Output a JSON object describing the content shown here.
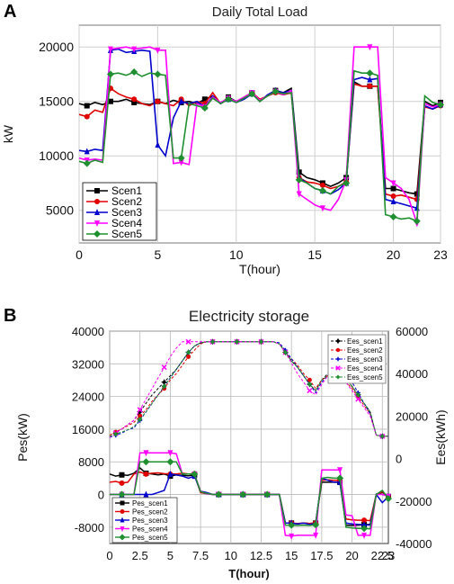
{
  "panel_labels": [
    "A",
    "B"
  ],
  "chart_data": [
    {
      "type": "line",
      "title": "Daily Total Load",
      "xlabel": "T(hour)",
      "ylabel": "kW",
      "xlim": [
        0,
        23
      ],
      "ylim": [
        2000,
        22000
      ],
      "xticks": [
        "0",
        "5",
        "10",
        "15",
        "20",
        "23"
      ],
      "yticks": [
        "5000",
        "10000",
        "15000",
        "20000"
      ],
      "grid": true,
      "legend_position": "bottom-left",
      "x": [
        0,
        0.5,
        1,
        1.5,
        2,
        2.5,
        3,
        3.5,
        4,
        4.5,
        5,
        5.5,
        6,
        6.5,
        7,
        7.5,
        8,
        8.5,
        9,
        9.5,
        10,
        10.5,
        11,
        11.5,
        12,
        12.5,
        13,
        13.5,
        14,
        14.5,
        15,
        15.5,
        16,
        16.5,
        17,
        17.5,
        18,
        18.5,
        19,
        19.5,
        20,
        20.5,
        21,
        21.5,
        22,
        22.5,
        23
      ],
      "series": [
        {
          "name": "Scen1",
          "color": "#000000",
          "marker": "square",
          "values": [
            14800,
            14600,
            14900,
            14700,
            15000,
            15000,
            15200,
            14900,
            14800,
            14700,
            15000,
            14800,
            15100,
            14900,
            15000,
            14800,
            15200,
            15500,
            14800,
            15400,
            15000,
            15300,
            15800,
            15000,
            15600,
            16000,
            15800,
            16200,
            8500,
            8000,
            7800,
            7500,
            7200,
            7500,
            8000,
            16800,
            16400,
            16400,
            16400,
            7000,
            7000,
            6800,
            6600,
            6500,
            15000,
            14600,
            14900
          ]
        },
        {
          "name": "Scen2",
          "color": "#e00000",
          "marker": "circle",
          "values": [
            13800,
            13600,
            14200,
            14000,
            16200,
            15700,
            15400,
            15200,
            14800,
            14600,
            15000,
            14800,
            14600,
            15200,
            14600,
            15000,
            14800,
            15800,
            14800,
            15200,
            15000,
            15400,
            15800,
            15200,
            15500,
            15800,
            15600,
            15800,
            8000,
            7600,
            7500,
            7300,
            7000,
            7200,
            7600,
            16600,
            16400,
            16400,
            16400,
            6500,
            6300,
            6400,
            6200,
            6000,
            14500,
            14300,
            14600
          ]
        },
        {
          "name": "Scen3",
          "color": "#0000cc",
          "marker": "triangle",
          "values": [
            10500,
            10400,
            10600,
            10500,
            19700,
            19800,
            19500,
            19600,
            19700,
            19600,
            11000,
            10000,
            13500,
            15000,
            14800,
            15000,
            14500,
            15500,
            14800,
            15200,
            14900,
            15200,
            15700,
            15000,
            15600,
            16000,
            15800,
            16000,
            8000,
            7500,
            7000,
            6800,
            6500,
            6900,
            7500,
            17000,
            17200,
            17000,
            17100,
            6000,
            5800,
            5600,
            5400,
            5200,
            14600,
            14300,
            14700
          ]
        },
        {
          "name": "Scen4",
          "color": "#ff00ff",
          "marker": "triangle-down",
          "values": [
            9800,
            9600,
            9700,
            9600,
            19800,
            19900,
            20000,
            19800,
            19900,
            20000,
            19700,
            19700,
            9300,
            9400,
            9200,
            14800,
            14500,
            15400,
            14900,
            15300,
            15000,
            15400,
            15800,
            15100,
            15500,
            15900,
            15600,
            16000,
            6500,
            6000,
            5500,
            5200,
            5000,
            6000,
            7800,
            20000,
            20000,
            20000,
            20000,
            8000,
            7500,
            7000,
            6000,
            3800,
            14800,
            14500,
            14700
          ]
        },
        {
          "name": "Scen5",
          "color": "#1f8f2f",
          "marker": "diamond",
          "values": [
            9500,
            9300,
            9600,
            9400,
            17500,
            17600,
            17400,
            17700,
            17300,
            17600,
            17500,
            17400,
            9800,
            9800,
            14800,
            14600,
            14400,
            15300,
            14800,
            15200,
            14900,
            15300,
            15700,
            15000,
            15500,
            15900,
            15700,
            15800,
            7800,
            7500,
            7000,
            6800,
            6500,
            7200,
            7500,
            17800,
            17600,
            17600,
            17400,
            4600,
            4400,
            4200,
            4300,
            4000,
            15500,
            14900,
            14700
          ]
        }
      ]
    },
    {
      "type": "line",
      "title": "Electricity storage",
      "xlabel": "T(hour)",
      "ylabel": "Pes(kW)",
      "ylabel_right": "Ees(kWh)",
      "xlim": [
        0,
        23
      ],
      "ylim": [
        -12000,
        40000
      ],
      "ylim_right": [
        -40000,
        60000
      ],
      "xticks": [
        "0",
        "2.5",
        "5",
        "7.5",
        "10",
        "12.5",
        "15",
        "17.5",
        "20",
        "22.5",
        "23"
      ],
      "yticks": [
        "-8000",
        "0",
        "8000",
        "16000",
        "24000",
        "32000",
        "40000"
      ],
      "yticks_right": [
        "-40000",
        "-20000",
        "0",
        "20000",
        "40000",
        "60000"
      ],
      "grid": true,
      "legend_position_pes": "bottom-left",
      "legend_position_ees": "top-right",
      "x": [
        0,
        0.5,
        1,
        1.5,
        2,
        2.5,
        3,
        3.5,
        4,
        4.5,
        5,
        5.5,
        6,
        6.5,
        7,
        7.5,
        8,
        8.5,
        9,
        9.5,
        10,
        10.5,
        11,
        11.5,
        12,
        12.5,
        13,
        13.5,
        14,
        14.5,
        15,
        15.5,
        16,
        16.5,
        17,
        17.5,
        18,
        18.5,
        19,
        19.5,
        20,
        20.5,
        21,
        21.5,
        22,
        22.5,
        23
      ],
      "ees_series": [
        {
          "name": "Ees_scen1",
          "color": "#000000",
          "marker": "star",
          "values": [
            10000,
            12000,
            14000,
            16000,
            18000,
            22000,
            26000,
            30000,
            33000,
            36000,
            39000,
            42000,
            46000,
            50000,
            53000,
            54500,
            55000,
            55000,
            55000,
            55000,
            55000,
            55000,
            55000,
            55000,
            55000,
            55000,
            55000,
            55000,
            54000,
            50000,
            46000,
            43000,
            39000,
            35000,
            32000,
            37000,
            40000,
            42000,
            41000,
            38000,
            34000,
            30000,
            26000,
            22000,
            11000,
            10500,
            10500
          ]
        },
        {
          "name": "Ees_scen2",
          "color": "#e00000",
          "marker": "circle",
          "values": [
            11000,
            12500,
            14000,
            15500,
            17000,
            20000,
            23000,
            27000,
            30000,
            33000,
            37000,
            40000,
            44000,
            48000,
            51000,
            54000,
            55000,
            55000,
            55000,
            55000,
            55000,
            55000,
            55000,
            55000,
            55000,
            55000,
            55000,
            55000,
            54000,
            50000,
            47000,
            44000,
            40000,
            37000,
            33000,
            37000,
            39000,
            40000,
            38000,
            36000,
            33000,
            29000,
            25000,
            21000,
            11000,
            10500,
            10500
          ]
        },
        {
          "name": "Ees_scen3",
          "color": "#0000cc",
          "marker": "plus",
          "values": [
            10000,
            11000,
            12000,
            13500,
            14500,
            18000,
            22000,
            26000,
            30000,
            34000,
            38000,
            42000,
            46000,
            50000,
            53000,
            54500,
            55000,
            55000,
            55000,
            55000,
            55000,
            55000,
            55000,
            55000,
            55000,
            55000,
            55000,
            55000,
            54500,
            51000,
            47000,
            43000,
            39000,
            35000,
            31000,
            36000,
            39000,
            42000,
            43000,
            40000,
            36000,
            31000,
            26000,
            21000,
            11000,
            10500,
            10500
          ]
        },
        {
          "name": "Ees_scen4",
          "color": "#ff00ff",
          "marker": "x",
          "values": [
            10000,
            12000,
            14000,
            16000,
            18000,
            23000,
            28000,
            33000,
            38000,
            43000,
            48000,
            52000,
            55000,
            55000,
            55000,
            55000,
            55000,
            55000,
            55000,
            55000,
            55000,
            55000,
            55000,
            55000,
            55000,
            55000,
            55000,
            55000,
            54000,
            50000,
            45000,
            40000,
            36000,
            32000,
            30000,
            35000,
            39000,
            42000,
            40000,
            36000,
            32000,
            28000,
            24000,
            20000,
            11000,
            10500,
            10500
          ]
        },
        {
          "name": "Ees_scen5",
          "color": "#1f8f2f",
          "marker": "asterisk",
          "values": [
            10500,
            11500,
            12500,
            13500,
            15000,
            18500,
            22000,
            26000,
            30000,
            34000,
            38000,
            42000,
            46000,
            50000,
            53000,
            54500,
            55000,
            55000,
            55000,
            55000,
            55000,
            55000,
            55000,
            55000,
            55000,
            55000,
            55000,
            55000,
            54000,
            50000,
            46000,
            43000,
            39000,
            35000,
            32000,
            37000,
            39000,
            40000,
            40000,
            37000,
            34000,
            30000,
            26000,
            22000,
            11000,
            10500,
            10500
          ]
        }
      ],
      "pes_series": [
        {
          "name": "Pes_scen1",
          "color": "#000000",
          "marker": "square",
          "values": [
            5000,
            4500,
            4800,
            4700,
            5200,
            6500,
            5200,
            5000,
            4800,
            5000,
            4500,
            4800,
            4700,
            4600,
            4800,
            500,
            200,
            0,
            0,
            0,
            0,
            0,
            0,
            0,
            0,
            0,
            0,
            0,
            0,
            -7000,
            -7000,
            -7200,
            -7000,
            -7100,
            -7000,
            3000,
            3000,
            3000,
            3000,
            -7500,
            -7600,
            -7500,
            -7400,
            -7300,
            0,
            500,
            -500
          ]
        },
        {
          "name": "Pes_scen2",
          "color": "#e00000",
          "marker": "circle",
          "values": [
            3000,
            3200,
            2800,
            3000,
            5000,
            5500,
            5000,
            5200,
            5300,
            5100,
            5000,
            5000,
            5200,
            5000,
            5100,
            500,
            300,
            0,
            0,
            0,
            0,
            0,
            0,
            0,
            0,
            0,
            0,
            0,
            0,
            -7000,
            -7000,
            -7100,
            -7000,
            -7100,
            -7000,
            3500,
            3600,
            3500,
            3500,
            -6000,
            -6200,
            -6300,
            -6300,
            -6400,
            0,
            700,
            -700
          ]
        },
        {
          "name": "Pes_scen3",
          "color": "#0000cc",
          "marker": "triangle",
          "values": [
            0,
            0,
            0,
            0,
            0,
            0,
            0,
            0,
            500,
            1000,
            5000,
            4800,
            4500,
            4000,
            4500,
            800,
            500,
            0,
            0,
            0,
            0,
            0,
            0,
            0,
            0,
            0,
            0,
            0,
            0,
            -7000,
            -7000,
            -7200,
            -7000,
            -7300,
            -7100,
            4000,
            3500,
            3000,
            3000,
            -7000,
            -7200,
            -7300,
            -7400,
            -7500,
            0,
            -2000,
            -500
          ]
        },
        {
          "name": "Pes_scen4",
          "color": "#ff00ff",
          "marker": "triangle-down",
          "values": [
            0,
            0,
            0,
            0,
            0,
            10200,
            10200,
            10200,
            10200,
            10200,
            10200,
            10000,
            5000,
            5000,
            5000,
            800,
            200,
            0,
            0,
            0,
            0,
            0,
            0,
            0,
            0,
            0,
            0,
            0,
            0,
            -10000,
            -10200,
            -10000,
            -10000,
            -10000,
            -10000,
            6000,
            6000,
            6000,
            6000,
            -5000,
            -5200,
            -10000,
            -10000,
            -10000,
            0,
            0,
            -500
          ]
        },
        {
          "name": "Pes_scen5",
          "color": "#1f8f2f",
          "marker": "diamond",
          "values": [
            0,
            0,
            0,
            0,
            0,
            8000,
            8000,
            8000,
            8000,
            8000,
            8000,
            8000,
            5000,
            5000,
            5000,
            700,
            300,
            0,
            0,
            0,
            0,
            0,
            0,
            0,
            0,
            0,
            0,
            0,
            0,
            -7500,
            -7500,
            -7600,
            -7500,
            -7600,
            -7400,
            4000,
            4200,
            4000,
            4000,
            -8000,
            -8200,
            -8300,
            -8300,
            -8400,
            0,
            1000,
            -1000
          ]
        }
      ]
    }
  ]
}
